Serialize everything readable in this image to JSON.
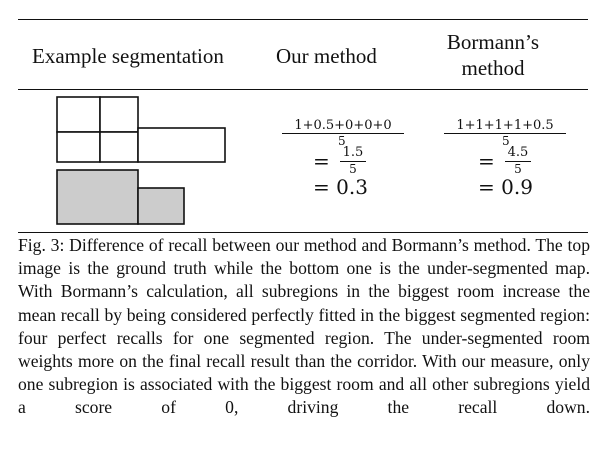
{
  "table": {
    "headers": {
      "example": "Example segmentation",
      "ours": "Our method",
      "bormann_line1": "Bormann’s",
      "bormann_line2": "method"
    },
    "ours": {
      "numerator": "1+0.5+0+0+0",
      "denominator": "5",
      "eq": "=",
      "mid_num": "1.5",
      "mid_den": "5",
      "result": "= 0.3"
    },
    "bormann": {
      "numerator": "1+1+1+1+0.5",
      "denominator": "5",
      "eq": "=",
      "mid_num": "4.5",
      "mid_den": "5",
      "result": "= 0.9"
    },
    "colors": {
      "ground_truth_fill": "#ffffff",
      "under_segmented_fill": "#cccccc",
      "stroke": "#111111"
    }
  },
  "caption": {
    "text": "Fig. 3: Difference of recall between our method and Bormann’s method. The top image is the ground truth while the bottom one is the under-segmented map. With Bormann’s calculation, all subregions in the biggest room increase the mean recall by being considered perfectly fitted in the biggest segmented region: four perfect recalls for one segmented region. The under-segmented room weights more on the final recall result than the corridor. With our measure, only one subregion is associated with the biggest room and all other subregions yield a score of 0, driving the recall down."
  }
}
